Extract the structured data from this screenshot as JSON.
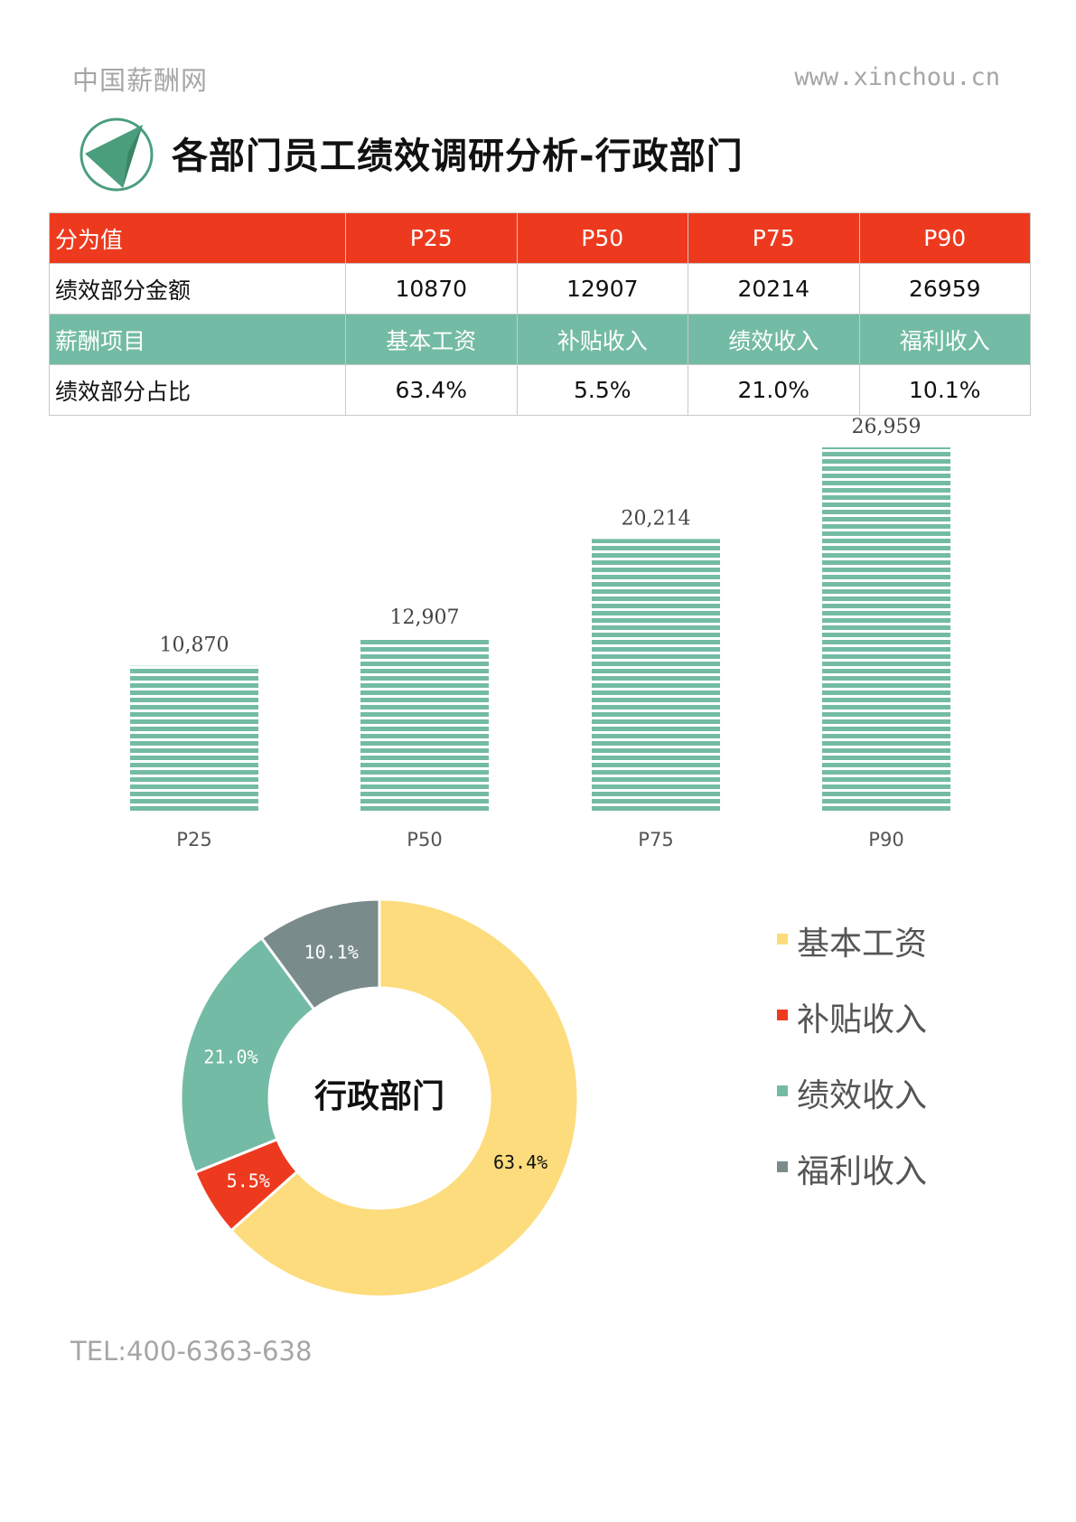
{
  "header": {
    "site_name": "中国薪酬网",
    "site_url": "www.xinchou.cn",
    "title": "各部门员工绩效调研分析-行政部门"
  },
  "colors": {
    "red": "#ed3a1f",
    "green": "#73bba4",
    "yellow": "#fddc7d",
    "gray": "#7a8b8b",
    "logo_green": "#4a9e7c"
  },
  "table": {
    "row1": [
      "分为值",
      "P25",
      "P50",
      "P75",
      "P90"
    ],
    "row2": [
      "绩效部分金额",
      "10870",
      "12907",
      "20214",
      "26959"
    ],
    "row3": [
      "薪酬项目",
      "基本工资",
      "补贴收入",
      "绩效收入",
      "福利收入"
    ],
    "row4": [
      "绩效部分占比",
      "63.4%",
      "5.5%",
      "21.0%",
      "10.1%"
    ]
  },
  "chart_data": [
    {
      "type": "bar",
      "categories": [
        "P25",
        "P50",
        "P75",
        "P90"
      ],
      "values": [
        10870,
        12907,
        20214,
        26959
      ],
      "data_labels": [
        "10,870",
        "12,907",
        "20,214",
        "26,959"
      ],
      "color": "#73bba4",
      "fill_pattern": "horizontal-stripes",
      "title": "",
      "xlabel": "",
      "ylabel": ""
    },
    {
      "type": "pie",
      "style": "donut",
      "center_label": "行政部门",
      "categories": [
        "基本工资",
        "补贴收入",
        "绩效收入",
        "福利收入"
      ],
      "values": [
        63.4,
        5.5,
        21.0,
        10.1
      ],
      "data_labels": [
        "63.4%",
        "5.5%",
        "21.0%",
        "10.1%"
      ],
      "colors": [
        "#fddc7d",
        "#ed3a1f",
        "#73bba4",
        "#7a8b8b"
      ],
      "legend_position": "right"
    }
  ],
  "footer": {
    "tel": "TEL:400-6363-638"
  }
}
